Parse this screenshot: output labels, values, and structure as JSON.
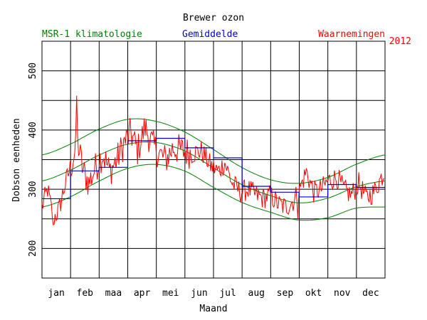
{
  "chart_data": {
    "type": "line",
    "title": "Brewer ozon",
    "xlabel": "Maand",
    "ylabel": "Dobson eenheden",
    "year": "2012",
    "legend": {
      "climatology": "MSR-1 klimatologie",
      "monthly_mean": "Gemiddelde",
      "observations": "Waarnemingen"
    },
    "colors": {
      "climatology": "#008000",
      "monthly_mean": "#0000cc",
      "observations": "#ff0000",
      "grid": "#000000"
    },
    "months": [
      "jan",
      "feb",
      "maa",
      "apr",
      "mei",
      "jun",
      "jul",
      "aug",
      "sep",
      "okt",
      "nov",
      "dec"
    ],
    "ylim": [
      150,
      550
    ],
    "yticks": [
      200,
      300,
      400,
      500
    ],
    "grid": true,
    "monthly_mean": [
      284,
      331,
      337,
      382,
      386,
      370,
      353,
      305,
      295,
      287,
      308,
      303
    ],
    "climatology_mean": [
      [
        0,
        314
      ],
      [
        30,
        332
      ],
      [
        60,
        357
      ],
      [
        91,
        376
      ],
      [
        121,
        379
      ],
      [
        152,
        365
      ],
      [
        182,
        337
      ],
      [
        213,
        308
      ],
      [
        244,
        289
      ],
      [
        274,
        277
      ],
      [
        305,
        285
      ],
      [
        335,
        304
      ],
      [
        366,
        314
      ]
    ],
    "climatology_upper": [
      [
        0,
        358
      ],
      [
        30,
        376
      ],
      [
        60,
        401
      ],
      [
        91,
        418
      ],
      [
        121,
        415
      ],
      [
        152,
        397
      ],
      [
        182,
        368
      ],
      [
        213,
        337
      ],
      [
        244,
        316
      ],
      [
        274,
        310
      ],
      [
        305,
        320
      ],
      [
        335,
        342
      ],
      [
        366,
        358
      ]
    ],
    "climatology_lower": [
      [
        0,
        270
      ],
      [
        30,
        287
      ],
      [
        60,
        313
      ],
      [
        91,
        335
      ],
      [
        121,
        342
      ],
      [
        152,
        331
      ],
      [
        182,
        304
      ],
      [
        213,
        278
      ],
      [
        244,
        261
      ],
      [
        274,
        248
      ],
      [
        305,
        252
      ],
      [
        335,
        268
      ],
      [
        366,
        270
      ]
    ],
    "observation_anchors": [
      [
        0,
        270
      ],
      [
        6,
        300
      ],
      [
        12,
        250
      ],
      [
        18,
        265
      ],
      [
        25,
        310
      ],
      [
        32,
        345
      ],
      [
        38,
        380
      ],
      [
        44,
        330
      ],
      [
        50,
        310
      ],
      [
        58,
        340
      ],
      [
        65,
        360
      ],
      [
        72,
        330
      ],
      [
        80,
        350
      ],
      [
        88,
        380
      ],
      [
        95,
        395
      ],
      [
        102,
        365
      ],
      [
        110,
        405
      ],
      [
        118,
        375
      ],
      [
        125,
        360
      ],
      [
        132,
        350
      ],
      [
        140,
        370
      ],
      [
        150,
        365
      ],
      [
        160,
        360
      ],
      [
        170,
        365
      ],
      [
        180,
        340
      ],
      [
        188,
        330
      ],
      [
        195,
        345
      ],
      [
        203,
        310
      ],
      [
        212,
        295
      ],
      [
        220,
        300
      ],
      [
        228,
        290
      ],
      [
        236,
        285
      ],
      [
        244,
        290
      ],
      [
        252,
        275
      ],
      [
        260,
        270
      ],
      [
        268,
        280
      ],
      [
        275,
        300
      ],
      [
        282,
        330
      ],
      [
        290,
        295
      ],
      [
        298,
        300
      ],
      [
        306,
        315
      ],
      [
        315,
        320
      ],
      [
        322,
        300
      ],
      [
        330,
        290
      ],
      [
        338,
        310
      ],
      [
        346,
        285
      ],
      [
        354,
        295
      ],
      [
        362,
        320
      ],
      [
        366,
        330
      ]
    ]
  }
}
